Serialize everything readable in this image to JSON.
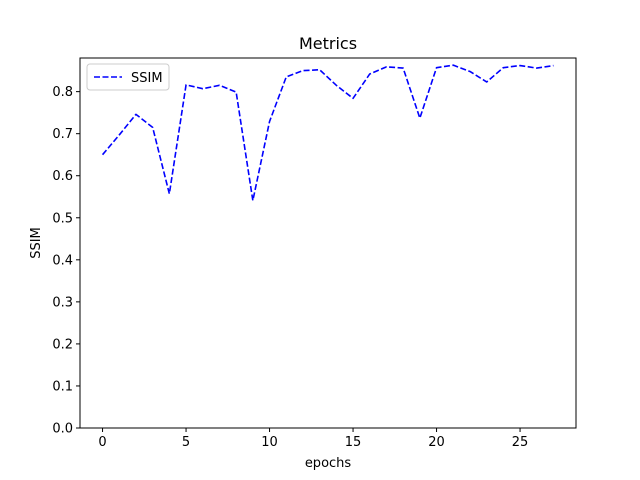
{
  "chart_data": {
    "type": "line",
    "title": "Metrics",
    "xlabel": "epochs",
    "ylabel": "SSIM",
    "xlim": [
      -1.35,
      28.35
    ],
    "ylim": [
      0.0,
      0.88
    ],
    "xticks": [
      0,
      5,
      10,
      15,
      20,
      25
    ],
    "yticks": [
      0.0,
      0.1,
      0.2,
      0.3,
      0.4,
      0.5,
      0.6,
      0.7,
      0.8
    ],
    "grid": false,
    "legend_position": "top-left",
    "series": [
      {
        "name": "SSIM",
        "color": "#0000ff",
        "linestyle": "dashed",
        "x": [
          0,
          1,
          2,
          3,
          4,
          5,
          6,
          7,
          8,
          9,
          10,
          11,
          12,
          13,
          14,
          15,
          16,
          17,
          18,
          19,
          20,
          21,
          22,
          23,
          24,
          25,
          26,
          27
        ],
        "y": [
          0.65,
          0.697,
          0.746,
          0.715,
          0.557,
          0.816,
          0.807,
          0.815,
          0.799,
          0.541,
          0.729,
          0.835,
          0.85,
          0.852,
          0.815,
          0.784,
          0.842,
          0.859,
          0.856,
          0.737,
          0.857,
          0.863,
          0.848,
          0.823,
          0.857,
          0.862,
          0.856,
          0.862
        ]
      }
    ]
  }
}
